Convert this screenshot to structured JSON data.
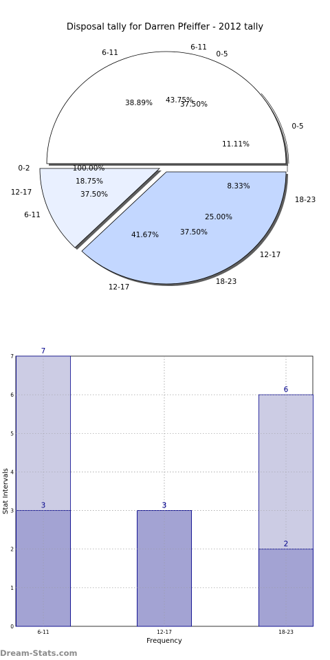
{
  "chart_data": [
    {
      "type": "pie",
      "title": "Disposal tally for Darren Pfeiffer - 2012 tally",
      "series": [
        {
          "slices": [
            {
              "label": "6-11",
              "percent": 37.5,
              "color": "#c3d7ff"
            },
            {
              "label": "12-17",
              "percent": 18.75,
              "color": "#c3d7ff"
            },
            {
              "label": "18-23",
              "percent": 43.75,
              "color": "#c3d7ff"
            }
          ]
        },
        {
          "slices": [
            {
              "label": "0-5",
              "percent": 11.11,
              "color": "#e9f0ff"
            },
            {
              "label": "6-11",
              "percent": 38.89,
              "color": "#e9f0ff"
            },
            {
              "label": "12-17",
              "percent": 8.33,
              "color": "#e9f0ff"
            },
            {
              "label": "18-23",
              "percent": 41.67,
              "color": "#e9f0ff"
            }
          ]
        },
        {
          "slices": [
            {
              "label": "0-2",
              "percent": 100.0,
              "color": "#ffffff"
            }
          ]
        }
      ],
      "extra_labels": [
        {
          "label": "0-5",
          "percent": 37.5
        },
        {
          "label": "12-17",
          "percent": 25.0
        }
      ]
    },
    {
      "type": "bar",
      "categories": [
        "6-11",
        "12-17",
        "18-23"
      ],
      "series": [
        {
          "values": [
            7,
            3,
            6
          ],
          "color": "#cccce4"
        },
        {
          "values": [
            3,
            3,
            2
          ],
          "color": "#a3a3d3"
        }
      ],
      "xlabel": "Frequency",
      "ylabel": "Stat Intervals",
      "ylim": [
        0,
        7
      ],
      "yticks": [
        0,
        1,
        2,
        3,
        4,
        5,
        6,
        7
      ],
      "grid": true
    }
  ],
  "watermark": "Dream-Stats.com"
}
